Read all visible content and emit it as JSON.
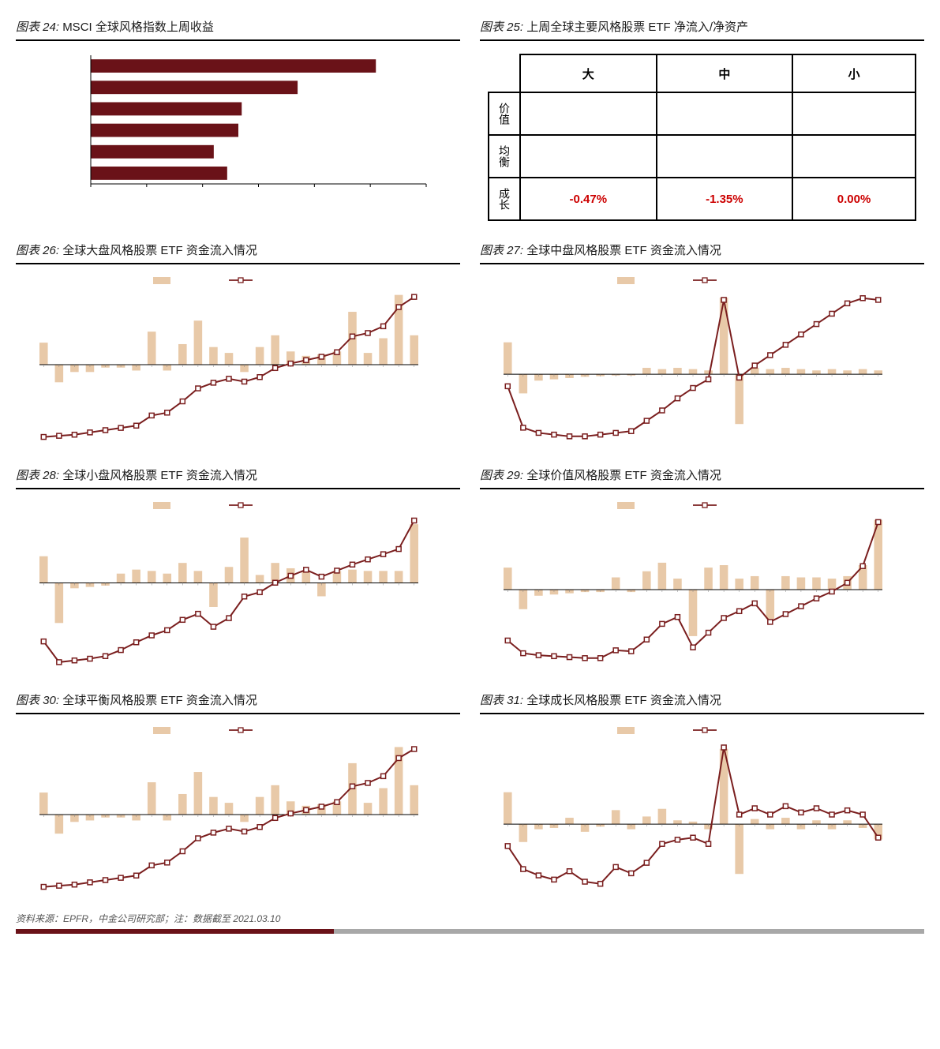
{
  "colors": {
    "bar": "#e8c9a8",
    "line": "#7a1e1e",
    "hbar": "#6a1218",
    "axis": "#000000",
    "neg_text": "#c00000",
    "title": "#1a1a1a",
    "background": "#ffffff"
  },
  "fonts": {
    "title_fontsize": 15,
    "cell_fontsize": 15,
    "source_fontsize": 12
  },
  "panel24": {
    "title_prefix": "图表 24: ",
    "title_text": "MSCI 全球风格指数上周收益",
    "type": "hbar",
    "values": [
      2.55,
      1.85,
      1.35,
      1.32,
      1.1,
      1.22
    ],
    "xlim": [
      0,
      3.0
    ],
    "bar_color": "#6a1218"
  },
  "panel25": {
    "title_prefix": "图表 25: ",
    "title_text": "上周全球主要风格股票 ETF 净流入/净资产",
    "type": "table",
    "col_headers": [
      "大",
      "中",
      "小"
    ],
    "row_headers": [
      "价值",
      "均衡",
      "成长"
    ],
    "cells": [
      [
        "",
        "",
        ""
      ],
      [
        "",
        "",
        ""
      ],
      [
        "-0.47%",
        "-1.35%",
        "0.00%"
      ]
    ],
    "neg_color": "#c00000"
  },
  "combo_defaults": {
    "legend_bar": "",
    "legend_line": "",
    "bar_color": "#e8c9a8",
    "line_color": "#7a1e1e",
    "marker": "square",
    "marker_size": 6,
    "n_points": 25
  },
  "panel26": {
    "title_prefix": "图表 26: ",
    "title_text": "全球大盘风格股票 ETF 资金流入情况",
    "type": "bar+line",
    "bars": [
      30,
      -24,
      -10,
      -10,
      -4,
      -4,
      -8,
      45,
      -8,
      28,
      60,
      24,
      16,
      -10,
      24,
      40,
      18,
      12,
      14,
      18,
      72,
      16,
      36,
      95,
      40
    ],
    "line": [
      -98,
      -96,
      -94,
      -90,
      -86,
      -82,
      -78,
      -60,
      -55,
      -35,
      -12,
      -2,
      5,
      0,
      8,
      24,
      32,
      38,
      44,
      52,
      80,
      86,
      98,
      132,
      150
    ],
    "ylim_bar": [
      -100,
      100
    ],
    "ylim_line": [
      -100,
      160
    ]
  },
  "panel27": {
    "title_prefix": "图表 27: ",
    "title_text": "全球中盘风格股票 ETF 资金流入情况",
    "type": "bar+line",
    "bars": [
      50,
      -30,
      -10,
      -8,
      -6,
      -4,
      -3,
      -2,
      -2,
      10,
      8,
      10,
      8,
      6,
      120,
      -78,
      10,
      8,
      10,
      8,
      6,
      8,
      6,
      8,
      6
    ],
    "line": [
      -40,
      -88,
      -94,
      -96,
      -98,
      -98,
      -96,
      -94,
      -92,
      -80,
      -68,
      -54,
      -42,
      -32,
      60,
      -30,
      -16,
      -4,
      8,
      20,
      32,
      44,
      56,
      62,
      60
    ],
    "ylim_bar": [
      -100,
      130
    ],
    "ylim_line": [
      -100,
      70
    ]
  },
  "panel28": {
    "title_prefix": "图表 28: ",
    "title_text": "全球小盘风格股票 ETF 资金流入情况",
    "type": "bar+line",
    "bars": [
      40,
      -60,
      -8,
      -6,
      -4,
      14,
      20,
      18,
      14,
      30,
      18,
      -36,
      24,
      68,
      12,
      30,
      22,
      18,
      -20,
      18,
      20,
      18,
      18,
      18,
      88
    ],
    "line": [
      -70,
      -118,
      -114,
      -110,
      -104,
      -90,
      -72,
      -56,
      -44,
      -20,
      -6,
      -36,
      -16,
      34,
      44,
      66,
      82,
      96,
      80,
      94,
      108,
      120,
      132,
      144,
      210
    ],
    "ylim_bar": [
      -120,
      100
    ],
    "ylim_line": [
      -120,
      220
    ]
  },
  "panel29": {
    "title_prefix": "图表 29: ",
    "title_text": "全球价值风格股票 ETF 资金流入情况",
    "type": "bar+line",
    "bars": [
      36,
      -32,
      -10,
      -8,
      -6,
      -4,
      -4,
      20,
      -4,
      30,
      44,
      18,
      -76,
      36,
      40,
      18,
      22,
      -48,
      22,
      20,
      20,
      18,
      22,
      40,
      114
    ],
    "line": [
      -74,
      -100,
      -104,
      -106,
      -108,
      -110,
      -110,
      -94,
      -96,
      -72,
      -40,
      -26,
      -88,
      -58,
      -28,
      -14,
      2,
      -36,
      -20,
      -4,
      12,
      26,
      44,
      78,
      168
    ],
    "ylim_bar": [
      -120,
      120
    ],
    "ylim_line": [
      -120,
      180
    ]
  },
  "panel30": {
    "title_prefix": "图表 30: ",
    "title_text": "全球平衡风格股票 ETF 资金流入情况",
    "type": "bar+line",
    "bars": [
      30,
      -26,
      -10,
      -8,
      -4,
      -4,
      -8,
      44,
      -8,
      28,
      58,
      24,
      16,
      -10,
      24,
      40,
      18,
      12,
      14,
      18,
      70,
      16,
      36,
      92,
      40
    ],
    "line": [
      -98,
      -96,
      -94,
      -90,
      -86,
      -82,
      -78,
      -60,
      -55,
      -35,
      -12,
      -2,
      5,
      0,
      8,
      24,
      32,
      38,
      44,
      52,
      80,
      86,
      98,
      130,
      146
    ],
    "ylim_bar": [
      -100,
      100
    ],
    "ylim_line": [
      -100,
      160
    ]
  },
  "panel31": {
    "title_prefix": "图表 31: ",
    "title_text": "全球成长风格股票 ETF 资金流入情况",
    "type": "bar+line",
    "bars": [
      50,
      -28,
      -8,
      -6,
      10,
      -12,
      -4,
      22,
      -8,
      12,
      24,
      6,
      4,
      -8,
      118,
      -78,
      8,
      -8,
      10,
      -8,
      6,
      -8,
      6,
      -6,
      -24
    ],
    "line": [
      -10,
      -32,
      -38,
      -42,
      -34,
      -44,
      -46,
      -30,
      -36,
      -26,
      -8,
      -4,
      -2,
      -8,
      84,
      20,
      26,
      20,
      28,
      22,
      26,
      20,
      24,
      20,
      -2
    ],
    "ylim_bar": [
      -100,
      130
    ],
    "ylim_line": [
      -50,
      90
    ]
  },
  "source": {
    "text": "资料来源：EPFR，中金公司研究部；注：数据截至 2021.03.10"
  }
}
